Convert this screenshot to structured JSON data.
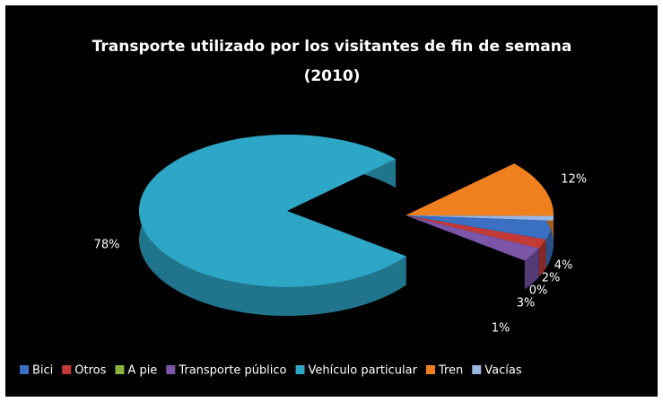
{
  "chart_data": {
    "type": "pie3d",
    "title_lines": [
      "Transporte utilizado por los visitantes de fin de semana",
      "(2010)"
    ],
    "categories": [
      "Bici",
      "Otros",
      "A pie",
      "Transporte público",
      "Vehículo particular",
      "Tren",
      "Vacías"
    ],
    "values": [
      4,
      2,
      0,
      3,
      78,
      12,
      1
    ],
    "value_labels": [
      "4%",
      "2%",
      "0%",
      "3%",
      "78%",
      "12%",
      "1%"
    ],
    "colors": [
      "#3a6fc4",
      "#c43a36",
      "#8ab43c",
      "#7a55a8",
      "#2ea6c6",
      "#f0801e",
      "#98b6e2"
    ],
    "legend": "bottom"
  }
}
